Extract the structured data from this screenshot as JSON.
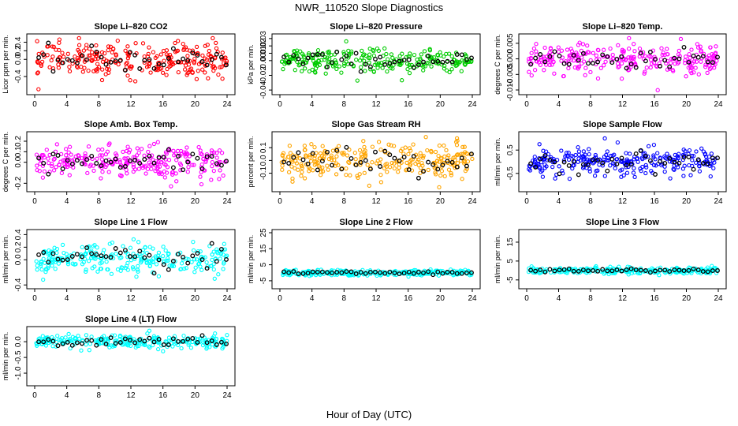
{
  "figure": {
    "title": "NWR_110520  Slope Diagnostics",
    "xlabel": "Hour of Day (UTC)"
  },
  "chart_data": [
    {
      "type": "scatter",
      "title": "Slope Li–820 CO2",
      "ylabel": "Licor ppm per min.",
      "xlim": [
        0,
        24
      ],
      "ylim": [
        -0.75,
        0.52
      ],
      "xticks": [
        0,
        4,
        8,
        12,
        16,
        20,
        24
      ],
      "yticks": [
        -0.4,
        0.0,
        0.2,
        0.4
      ],
      "ytick_labels": [
        "-0.4",
        "0.0",
        "0.2",
        "0.4"
      ],
      "color": "#ff0000",
      "spread": 0.2,
      "series": [
        {
          "name": "",
          "values": "dense scatter about 0.0, range -0.7 to 0.5"
        }
      ]
    },
    {
      "type": "scatter",
      "title": "Slope Li–820 Pressure",
      "ylabel": "kPa per min.",
      "xlim": [
        0,
        24
      ],
      "ylim": [
        -0.042,
        0.032
      ],
      "xticks": [
        0,
        4,
        8,
        12,
        16,
        20,
        24
      ],
      "yticks": [
        -0.04,
        -0.02,
        0.0,
        0.01,
        0.02,
        0.03
      ],
      "ytick_labels": [
        "-0.04",
        "-0.02",
        "0.00",
        "0.01",
        "0.02",
        "0.03"
      ],
      "color": "#00cc00",
      "spread": 0.008,
      "series": [
        {
          "name": "",
          "values": "dense scatter about 0.0, range -0.04 to 0.03"
        }
      ]
    },
    {
      "type": "scatter",
      "title": "Slope Li–820 Temp.",
      "ylabel": "degrees C per min.",
      "xlim": [
        0,
        24
      ],
      "ylim": [
        -0.0105,
        0.007
      ],
      "xticks": [
        0,
        4,
        8,
        12,
        16,
        20,
        24
      ],
      "yticks": [
        -0.01,
        -0.005,
        0.0,
        0.005
      ],
      "ytick_labels": [
        "-0.010",
        "-0.005",
        "0.000",
        "0.005"
      ],
      "color": "#ff00ff",
      "spread": 0.0025,
      "series": [
        {
          "name": "",
          "values": "dense scatter about 0.0, range -0.010 to 0.006"
        }
      ]
    },
    {
      "type": "scatter",
      "title": "Slope Amb. Box Temp.",
      "ylabel": "degrees C per min.",
      "xlim": [
        0,
        24
      ],
      "ylim": [
        -0.25,
        0.26
      ],
      "xticks": [
        0,
        4,
        8,
        12,
        16,
        20,
        24
      ],
      "yticks": [
        -0.2,
        0.0,
        0.1,
        0.2
      ],
      "ytick_labels": [
        "-0.2",
        "0.0",
        "0.1",
        "0.2"
      ],
      "color": "#ff00ff",
      "spread": 0.08,
      "series": [
        {
          "name": "",
          "values": "dense scatter about 0.0, range -0.22 to 0.22"
        }
      ]
    },
    {
      "type": "scatter",
      "title": "Slope Gas Stream RH",
      "ylabel": "percent per min.",
      "xlim": [
        0,
        24
      ],
      "ylim": [
        -0.22,
        0.2
      ],
      "xticks": [
        0,
        4,
        8,
        12,
        16,
        20,
        24
      ],
      "yticks": [
        -0.1,
        0.0,
        0.1
      ],
      "ytick_labels": [
        "-0.1",
        "0.0",
        "0.1"
      ],
      "color": "#ffa500",
      "spread": 0.07,
      "series": [
        {
          "name": "",
          "values": "dense scatter about 0.0, range -0.2 to 0.2"
        }
      ]
    },
    {
      "type": "scatter",
      "title": "Slope Sample Flow",
      "ylabel": "ml/min per min.",
      "xlim": [
        0,
        24
      ],
      "ylim": [
        -1.15,
        1.15
      ],
      "xticks": [
        0,
        4,
        8,
        12,
        16,
        20,
        24
      ],
      "yticks": [
        -0.5,
        0.5
      ],
      "ytick_labels": [
        "-0.5",
        "0.5"
      ],
      "color": "#0000ff",
      "spread": 0.3,
      "series": [
        {
          "name": "",
          "values": "dense scatter about 0.0, range -1.1 to 1.1"
        }
      ]
    },
    {
      "type": "scatter",
      "title": "Slope Line 1 Flow",
      "ylabel": "ml/min per min.",
      "xlim": [
        0,
        24
      ],
      "ylim": [
        -0.41,
        0.43
      ],
      "xticks": [
        0,
        4,
        8,
        12,
        16,
        20,
        24
      ],
      "yticks": [
        -0.4,
        0.0,
        0.2,
        0.4
      ],
      "ytick_labels": [
        "-0.4",
        "0.0",
        "0.2",
        "0.4"
      ],
      "color": "#00ffff",
      "spread": 0.13,
      "series": [
        {
          "name": "",
          "values": "dense scatter about 0.0, range -0.4 to 0.4"
        }
      ]
    },
    {
      "type": "scatter",
      "title": "Slope Line 2 Flow",
      "ylabel": "ml/min per min.",
      "xlim": [
        0,
        24
      ],
      "ylim": [
        -8,
        25
      ],
      "xticks": [
        0,
        4,
        8,
        12,
        16,
        20,
        24
      ],
      "yticks": [
        -5,
        5,
        15,
        25
      ],
      "ytick_labels": [
        "-5",
        "5",
        "15",
        "25"
      ],
      "color": "#00ffff",
      "spread": 0.9,
      "series": [
        {
          "name": "",
          "values": "scatter near 0, outliers near 23 and 14"
        }
      ]
    },
    {
      "type": "scatter",
      "title": "Slope Line 3 Flow",
      "ylabel": "ml/min per min.",
      "xlim": [
        0,
        24
      ],
      "ylim": [
        -8,
        20
      ],
      "xticks": [
        0,
        4,
        8,
        12,
        16,
        20,
        24
      ],
      "yticks": [
        -5,
        5,
        15
      ],
      "ytick_labels": [
        "-5",
        "5",
        "15"
      ],
      "color": "#00ffff",
      "spread": 0.9,
      "series": [
        {
          "name": "",
          "values": "scatter near 0, outliers near 11 and 20"
        }
      ]
    },
    {
      "type": "scatter",
      "title": "Slope Line 4 (LT) Flow",
      "ylabel": "ml/min per min.",
      "xlim": [
        0,
        24
      ],
      "ylim": [
        -1.3,
        0.38
      ],
      "xticks": [
        0,
        4,
        8,
        12,
        16,
        20,
        24
      ],
      "yticks": [
        -1.0,
        -0.5,
        0.0
      ],
      "ytick_labels": [
        "-1.0",
        "-0.5",
        "0.0"
      ],
      "color": "#00ffff",
      "spread": 0.1,
      "series": [
        {
          "name": "",
          "values": "scatter near 0, outlier near -1.25"
        }
      ]
    }
  ]
}
